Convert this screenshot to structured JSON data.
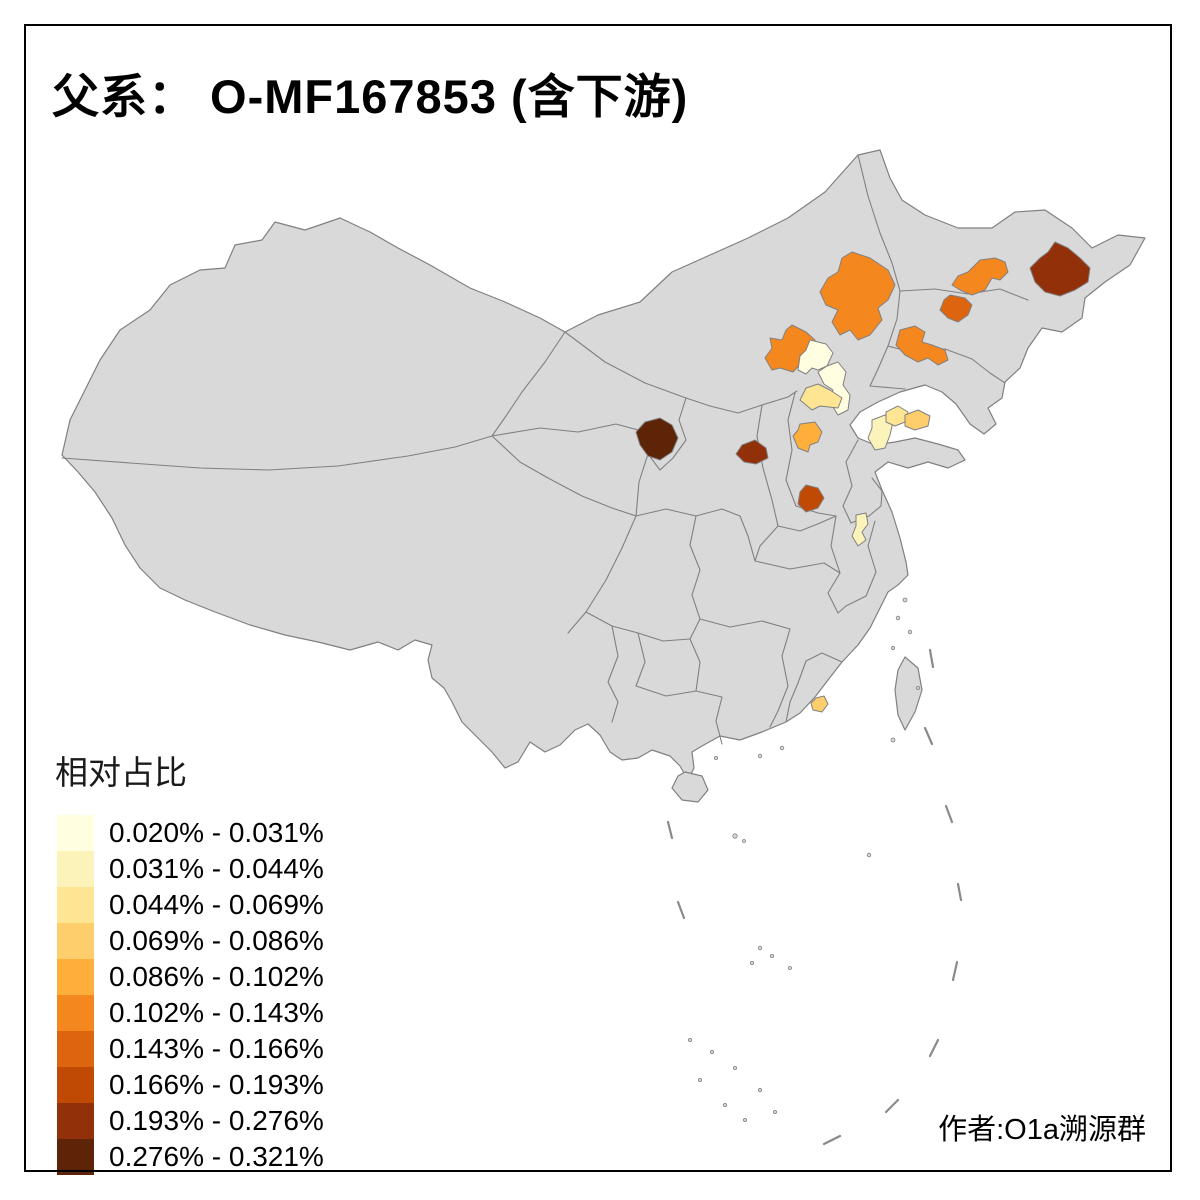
{
  "title": "父系： O-MF167853 (含下游)",
  "credit": "作者:O1a溯源群",
  "legend": {
    "title": "相对占比",
    "items": [
      {
        "label": "0.020% - 0.031%",
        "color": "#FFFEE1"
      },
      {
        "label": "0.031% - 0.044%",
        "color": "#FBF3BA"
      },
      {
        "label": "0.044% - 0.069%",
        "color": "#FDE594"
      },
      {
        "label": "0.069% - 0.086%",
        "color": "#FDCE6B"
      },
      {
        "label": "0.086% - 0.102%",
        "color": "#FDAE3B"
      },
      {
        "label": "0.102% - 0.143%",
        "color": "#F5871F"
      },
      {
        "label": "0.143% - 0.166%",
        "color": "#DD650F"
      },
      {
        "label": "0.166% - 0.193%",
        "color": "#C04A04"
      },
      {
        "label": "0.193% - 0.276%",
        "color": "#92300A"
      },
      {
        "label": "0.276% - 0.321%",
        "color": "#5E2408"
      }
    ]
  },
  "map": {
    "sea_color": "#FFFFFF",
    "land_color": "#D9D9D9",
    "border_color": "#808080",
    "frame_color": "#000000",
    "class_colors": [
      "#FFFEE1",
      "#FBF3BA",
      "#FDE594",
      "#FDCE6B",
      "#FDAE3B",
      "#F5871F",
      "#DD650F",
      "#C04A04",
      "#92300A",
      "#5E2408"
    ],
    "regions": [
      {
        "id": "r-nw-beijing",
        "class": 6
      },
      {
        "id": "r-beijing",
        "class": 1
      },
      {
        "id": "r-tianjin",
        "class": 1
      },
      {
        "id": "r-s-of-beijing",
        "class": 3
      },
      {
        "id": "r-hebei-s",
        "class": 5
      },
      {
        "id": "r-innermongolia-e",
        "class": 6
      },
      {
        "id": "r-jilin-c",
        "class": 6
      },
      {
        "id": "r-jilin-sw",
        "class": 7
      },
      {
        "id": "r-heilongjiang-e",
        "class": 9
      },
      {
        "id": "r-liaoning-w",
        "class": 6
      },
      {
        "id": "r-shandong-w",
        "class": 2
      },
      {
        "id": "r-shandong-mid",
        "class": 3
      },
      {
        "id": "r-shandong-e",
        "class": 4
      },
      {
        "id": "r-center-dark",
        "class": 10
      },
      {
        "id": "r-shaanxi-n",
        "class": 9
      },
      {
        "id": "r-shanxi-s",
        "class": 8
      },
      {
        "id": "r-jiangsu-n",
        "class": 2
      },
      {
        "id": "r-fujian-se",
        "class": 4
      }
    ]
  },
  "chart_data": {
    "type": "choropleth",
    "title": "父系： O-MF167853 (含下游)",
    "legend_title": "相对占比",
    "legend_position": "bottom-left",
    "classes": [
      {
        "range": "0.020% - 0.031%",
        "color": "#FFFEE1"
      },
      {
        "range": "0.031% - 0.044%",
        "color": "#FBF3BA"
      },
      {
        "range": "0.044% - 0.069%",
        "color": "#FDE594"
      },
      {
        "range": "0.069% - 0.086%",
        "color": "#FDCE6B"
      },
      {
        "range": "0.086% - 0.102%",
        "color": "#FDAE3B"
      },
      {
        "range": "0.102% - 0.143%",
        "color": "#F5871F"
      },
      {
        "range": "0.143% - 0.166%",
        "color": "#DD650F"
      },
      {
        "range": "0.166% - 0.193%",
        "color": "#C04A04"
      },
      {
        "range": "0.193% - 0.276%",
        "color": "#92300A"
      },
      {
        "range": "0.276% - 0.321%",
        "color": "#5E2408"
      }
    ],
    "shaded_region_classes": {
      "r-nw-beijing": "0.102% - 0.143%",
      "r-beijing": "0.020% - 0.031%",
      "r-tianjin": "0.020% - 0.031%",
      "r-s-of-beijing": "0.044% - 0.069%",
      "r-hebei-s": "0.086% - 0.102%",
      "r-innermongolia-e": "0.102% - 0.143%",
      "r-jilin-c": "0.102% - 0.143%",
      "r-jilin-sw": "0.143% - 0.166%",
      "r-heilongjiang-e": "0.193% - 0.276%",
      "r-liaoning-w": "0.102% - 0.143%",
      "r-shandong-w": "0.031% - 0.044%",
      "r-shandong-mid": "0.044% - 0.069%",
      "r-shandong-e": "0.069% - 0.086%",
      "r-center-dark": "0.276% - 0.321%",
      "r-shaanxi-n": "0.193% - 0.276%",
      "r-shanxi-s": "0.166% - 0.193%",
      "r-jiangsu-n": "0.031% - 0.044%",
      "r-fujian-se": "0.069% - 0.086%"
    }
  }
}
